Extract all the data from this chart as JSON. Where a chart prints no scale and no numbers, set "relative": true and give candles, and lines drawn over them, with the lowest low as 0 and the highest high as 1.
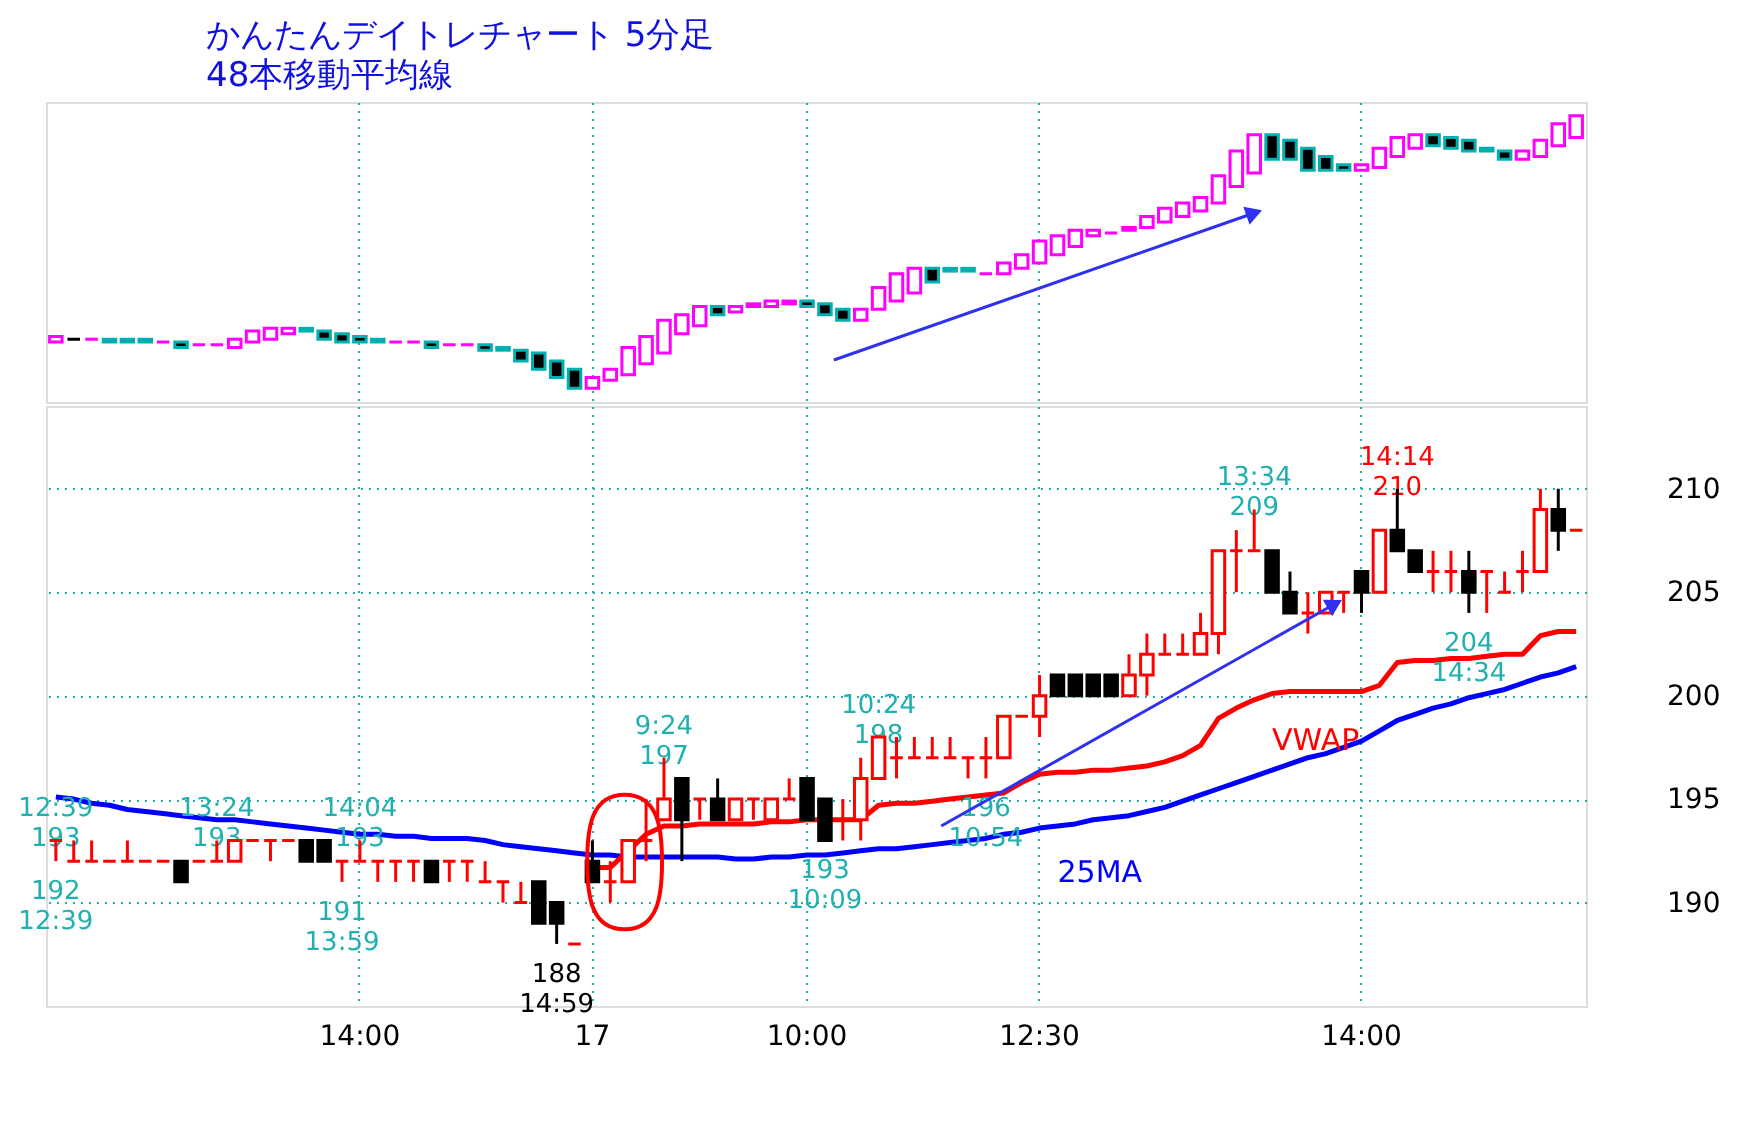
{
  "chart_data": [
    {
      "type": "candlestick",
      "title": "かんたんデイトレチャート 5分足",
      "subtitle": "48本移動平均線",
      "relative": true,
      "tick_labels": false,
      "grid": "x",
      "categories": [
        null,
        null,
        null,
        null,
        null,
        null,
        null,
        null,
        null,
        null,
        null,
        null,
        null,
        null,
        null,
        null,
        null,
        null,
        null,
        null,
        null,
        null,
        null,
        null,
        null,
        null,
        null,
        null,
        null,
        null,
        null,
        null,
        null,
        null,
        null,
        null,
        null,
        null,
        null,
        null,
        null,
        null,
        null,
        null,
        null,
        null,
        null,
        null,
        null,
        null,
        null,
        null,
        null,
        null,
        null,
        null,
        null,
        null,
        null,
        null,
        null,
        null,
        null,
        null,
        null,
        null,
        null,
        null,
        null,
        null,
        null,
        null,
        null,
        null,
        null,
        null,
        null,
        null,
        null,
        null,
        null,
        null,
        null,
        null,
        null,
        null
      ],
      "ohlc": [
        [
          0.17,
          0.19,
          0.17,
          0.19
        ],
        [
          0.18,
          0.18,
          0.18,
          0.18
        ],
        [
          0.18,
          0.18,
          0.18,
          0.18
        ],
        [
          0.18,
          0.18,
          0.17,
          0.17
        ],
        [
          0.18,
          0.18,
          0.17,
          0.17
        ],
        [
          0.18,
          0.18,
          0.17,
          0.17
        ],
        [
          0.17,
          0.17,
          0.17,
          0.17
        ],
        [
          0.17,
          0.17,
          0.15,
          0.15
        ],
        [
          0.16,
          0.16,
          0.16,
          0.16
        ],
        [
          0.16,
          0.16,
          0.16,
          0.16
        ],
        [
          0.15,
          0.18,
          0.15,
          0.18
        ],
        [
          0.17,
          0.21,
          0.17,
          0.21
        ],
        [
          0.18,
          0.22,
          0.18,
          0.22
        ],
        [
          0.2,
          0.22,
          0.2,
          0.22
        ],
        [
          0.22,
          0.22,
          0.21,
          0.21
        ],
        [
          0.21,
          0.21,
          0.18,
          0.18
        ],
        [
          0.2,
          0.2,
          0.17,
          0.17
        ],
        [
          0.19,
          0.19,
          0.17,
          0.17
        ],
        [
          0.18,
          0.18,
          0.17,
          0.17
        ],
        [
          0.17,
          0.17,
          0.17,
          0.17
        ],
        [
          0.17,
          0.17,
          0.17,
          0.17
        ],
        [
          0.17,
          0.17,
          0.15,
          0.15
        ],
        [
          0.16,
          0.16,
          0.16,
          0.16
        ],
        [
          0.16,
          0.16,
          0.16,
          0.16
        ],
        [
          0.16,
          0.16,
          0.14,
          0.14
        ],
        [
          0.15,
          0.15,
          0.14,
          0.14
        ],
        [
          0.14,
          0.14,
          0.1,
          0.1
        ],
        [
          0.13,
          0.13,
          0.07,
          0.07
        ],
        [
          0.1,
          0.1,
          0.04,
          0.04
        ],
        [
          0.07,
          0.07,
          0,
          0
        ],
        [
          0,
          0.04,
          0,
          0.04
        ],
        [
          0.03,
          0.07,
          0.03,
          0.07
        ],
        [
          0.05,
          0.15,
          0.05,
          0.15
        ],
        [
          0.09,
          0.19,
          0.09,
          0.19
        ],
        [
          0.13,
          0.25,
          0.13,
          0.25
        ],
        [
          0.2,
          0.27,
          0.2,
          0.27
        ],
        [
          0.23,
          0.3,
          0.23,
          0.3
        ],
        [
          0.3,
          0.3,
          0.27,
          0.27
        ],
        [
          0.28,
          0.3,
          0.28,
          0.3
        ],
        [
          0.3,
          0.31,
          0.3,
          0.31
        ],
        [
          0.3,
          0.32,
          0.3,
          0.32
        ],
        [
          0.31,
          0.32,
          0.31,
          0.32
        ],
        [
          0.32,
          0.32,
          0.3,
          0.3
        ],
        [
          0.31,
          0.31,
          0.27,
          0.27
        ],
        [
          0.29,
          0.29,
          0.25,
          0.25
        ],
        [
          0.25,
          0.29,
          0.25,
          0.29
        ],
        [
          0.29,
          0.37,
          0.29,
          0.37
        ],
        [
          0.32,
          0.42,
          0.32,
          0.42
        ],
        [
          0.35,
          0.44,
          0.35,
          0.44
        ],
        [
          0.44,
          0.44,
          0.39,
          0.39
        ],
        [
          0.44,
          0.44,
          0.43,
          0.43
        ],
        [
          0.44,
          0.44,
          0.43,
          0.43
        ],
        [
          0.42,
          0.42,
          0.42,
          0.42
        ],
        [
          0.42,
          0.46,
          0.42,
          0.46
        ],
        [
          0.44,
          0.49,
          0.44,
          0.49
        ],
        [
          0.46,
          0.54,
          0.46,
          0.54
        ],
        [
          0.49,
          0.56,
          0.49,
          0.56
        ],
        [
          0.52,
          0.58,
          0.52,
          0.58
        ],
        [
          0.56,
          0.58,
          0.56,
          0.58
        ],
        [
          0.57,
          0.57,
          0.57,
          0.57
        ],
        [
          0.58,
          0.59,
          0.58,
          0.59
        ],
        [
          0.59,
          0.63,
          0.59,
          0.63
        ],
        [
          0.61,
          0.66,
          0.61,
          0.66
        ],
        [
          0.63,
          0.68,
          0.63,
          0.68
        ],
        [
          0.65,
          0.7,
          0.65,
          0.7
        ],
        [
          0.68,
          0.78,
          0.68,
          0.78
        ],
        [
          0.74,
          0.87,
          0.74,
          0.87
        ],
        [
          0.79,
          0.93,
          0.79,
          0.93
        ],
        [
          0.93,
          0.93,
          0.84,
          0.84
        ],
        [
          0.91,
          0.91,
          0.84,
          0.84
        ],
        [
          0.88,
          0.88,
          0.8,
          0.8
        ],
        [
          0.85,
          0.85,
          0.8,
          0.8
        ],
        [
          0.82,
          0.82,
          0.8,
          0.8
        ],
        [
          0.8,
          0.82,
          0.8,
          0.82
        ],
        [
          0.81,
          0.88,
          0.81,
          0.88
        ],
        [
          0.85,
          0.92,
          0.85,
          0.92
        ],
        [
          0.88,
          0.93,
          0.88,
          0.93
        ],
        [
          0.93,
          0.93,
          0.89,
          0.89
        ],
        [
          0.92,
          0.92,
          0.88,
          0.88
        ],
        [
          0.91,
          0.91,
          0.87,
          0.87
        ],
        [
          0.88,
          0.88,
          0.87,
          0.87
        ],
        [
          0.87,
          0.87,
          0.84,
          0.84
        ],
        [
          0.84,
          0.87,
          0.84,
          0.87
        ],
        [
          0.85,
          0.91,
          0.85,
          0.91
        ],
        [
          0.89,
          0.97,
          0.89,
          0.97
        ],
        [
          0.92,
          1,
          0.92,
          1
        ]
      ],
      "colors": [
        "#ff00ff",
        "#000000",
        "#ff00ff",
        "#000000",
        "#000000",
        "#000000",
        "#ff00ff",
        "#000000",
        "#ff00ff",
        "#ff00ff",
        "#ff00ff",
        "#ff00ff",
        "#ff00ff",
        "#ff00ff",
        "#000000",
        "#000000",
        "#000000",
        "#000000",
        "#000000",
        "#ff00ff",
        "#ff00ff",
        "#000000",
        "#ff00ff",
        "#ff00ff",
        "#000000",
        "#000000",
        "#000000",
        "#000000",
        "#000000",
        "#000000",
        "#ff00ff",
        "#ff00ff",
        "#ff00ff",
        "#ff00ff",
        "#ff00ff",
        "#ff00ff",
        "#ff00ff",
        "#000000",
        "#ff00ff",
        "#ff00ff",
        "#ff00ff",
        "#ff00ff",
        "#000000",
        "#000000",
        "#000000",
        "#ff00ff",
        "#ff00ff",
        "#ff00ff",
        "#ff00ff",
        "#000000",
        "#000000",
        "#000000",
        "#ff00ff",
        "#ff00ff",
        "#ff00ff",
        "#ff00ff",
        "#ff00ff",
        "#ff00ff",
        "#ff00ff",
        "#ff00ff",
        "#ff00ff",
        "#ff00ff",
        "#ff00ff",
        "#ff00ff",
        "#ff00ff",
        "#ff00ff",
        "#ff00ff",
        "#ff00ff",
        "#000000",
        "#000000",
        "#000000",
        "#000000",
        "#000000",
        "#ff00ff",
        "#ff00ff",
        "#ff00ff",
        "#ff00ff",
        "#000000",
        "#000000",
        "#000000",
        "#000000",
        "#000000",
        "#ff00ff",
        "#ff00ff",
        "#ff00ff",
        "#ff00ff"
      ]
    },
    {
      "type": "candlestick",
      "grid": true,
      "ylim": [
        185,
        214
      ],
      "yticks": [
        190,
        195,
        200,
        205,
        210
      ],
      "categories": [
        null,
        null,
        null,
        null,
        null,
        null,
        null,
        null,
        null,
        null,
        null,
        null,
        null,
        null,
        null,
        null,
        null,
        "14:00",
        null,
        null,
        null,
        null,
        null,
        null,
        null,
        null,
        null,
        null,
        null,
        null,
        "17",
        null,
        null,
        null,
        null,
        null,
        null,
        null,
        null,
        null,
        null,
        null,
        "10:00",
        null,
        null,
        null,
        null,
        null,
        null,
        null,
        null,
        null,
        null,
        null,
        null,
        "12:30",
        null,
        null,
        null,
        null,
        null,
        null,
        null,
        null,
        null,
        null,
        null,
        null,
        null,
        null,
        null,
        null,
        null,
        "14:00",
        null,
        null,
        null,
        null,
        null,
        null,
        null,
        null,
        null,
        null,
        null,
        null
      ],
      "ohlc": [
        [
          193,
          193,
          192,
          193
        ],
        [
          192,
          193,
          192,
          192
        ],
        [
          192,
          193,
          192,
          192
        ],
        [
          192,
          192,
          192,
          192
        ],
        [
          192,
          193,
          192,
          192
        ],
        [
          192,
          192,
          192,
          192
        ],
        [
          192,
          192,
          192,
          192
        ],
        [
          192,
          192,
          191,
          191
        ],
        [
          192,
          192,
          192,
          192
        ],
        [
          192,
          193,
          192,
          192
        ],
        [
          192,
          193,
          192,
          193
        ],
        [
          193,
          193,
          193,
          193
        ],
        [
          193,
          193,
          192,
          193
        ],
        [
          193,
          193,
          193,
          193
        ],
        [
          193,
          193,
          192,
          192
        ],
        [
          193,
          193,
          192,
          192
        ],
        [
          192,
          192,
          191,
          192
        ],
        [
          192,
          193,
          192,
          192
        ],
        [
          192,
          192,
          191,
          192
        ],
        [
          192,
          192,
          191,
          192
        ],
        [
          192,
          192,
          191,
          192
        ],
        [
          192,
          192,
          191,
          191
        ],
        [
          192,
          192,
          191,
          192
        ],
        [
          192,
          192,
          191,
          192
        ],
        [
          191,
          192,
          191,
          191
        ],
        [
          191,
          191,
          190,
          191
        ],
        [
          190,
          191,
          190,
          190
        ],
        [
          191,
          191,
          189,
          189
        ],
        [
          190,
          190,
          188,
          189
        ],
        [
          188,
          188,
          188,
          188
        ],
        [
          192,
          193,
          191,
          191
        ],
        [
          191,
          192,
          190,
          191
        ],
        [
          191,
          193,
          191,
          193
        ],
        [
          193,
          195,
          192,
          193
        ],
        [
          194,
          197,
          194,
          195
        ],
        [
          196,
          196,
          192,
          194
        ],
        [
          195,
          195,
          194,
          195
        ],
        [
          195,
          196,
          194,
          194
        ],
        [
          194,
          195,
          194,
          195
        ],
        [
          195,
          195,
          194,
          195
        ],
        [
          194,
          195,
          194,
          195
        ],
        [
          195,
          196,
          195,
          195
        ],
        [
          196,
          196,
          194,
          194
        ],
        [
          195,
          195,
          193,
          193
        ],
        [
          194,
          195,
          193,
          194
        ],
        [
          194,
          197,
          193,
          196
        ],
        [
          196,
          198,
          196,
          198
        ],
        [
          197,
          198,
          196,
          197
        ],
        [
          197,
          198,
          197,
          197
        ],
        [
          197,
          198,
          197,
          197
        ],
        [
          197,
          198,
          197,
          197
        ],
        [
          197,
          197,
          196,
          197
        ],
        [
          197,
          198,
          196,
          197
        ],
        [
          197,
          199,
          197,
          199
        ],
        [
          199,
          199,
          199,
          199
        ],
        [
          199,
          201,
          198,
          200
        ],
        [
          201,
          201,
          200,
          200
        ],
        [
          201,
          201,
          200,
          200
        ],
        [
          201,
          201,
          200,
          200
        ],
        [
          201,
          201,
          200,
          200
        ],
        [
          200,
          202,
          200,
          201
        ],
        [
          201,
          203,
          200,
          202
        ],
        [
          202,
          203,
          202,
          202
        ],
        [
          202,
          203,
          202,
          202
        ],
        [
          202,
          204,
          202,
          203
        ],
        [
          203,
          207,
          202,
          207
        ],
        [
          207,
          208,
          205,
          207
        ],
        [
          207,
          209,
          207,
          207
        ],
        [
          207,
          207,
          205,
          205
        ],
        [
          205,
          206,
          204,
          204
        ],
        [
          204,
          205,
          203,
          204
        ],
        [
          204,
          205,
          204,
          205
        ],
        [
          205,
          205,
          204,
          205
        ],
        [
          206,
          206,
          204,
          205
        ],
        [
          205,
          208,
          205,
          208
        ],
        [
          208,
          210,
          207,
          207
        ],
        [
          207,
          207,
          206,
          206
        ],
        [
          206,
          207,
          205,
          206
        ],
        [
          206,
          207,
          205,
          206
        ],
        [
          206,
          207,
          204,
          205
        ],
        [
          206,
          206,
          204,
          206
        ],
        [
          205,
          206,
          205,
          205
        ],
        [
          206,
          207,
          205,
          206
        ],
        [
          206,
          210,
          206,
          209
        ],
        [
          209,
          210,
          207,
          208
        ],
        [
          208,
          208,
          208,
          208
        ]
      ],
      "colors": [
        "#ff0000",
        "#ff0000",
        "#ff0000",
        "#ff0000",
        "#ff0000",
        "#ff0000",
        "#ff0000",
        "#000000",
        "#ff0000",
        "#ff0000",
        "#ff0000",
        "#ff0000",
        "#ff0000",
        "#ff0000",
        "#000000",
        "#000000",
        "#ff0000",
        "#ff0000",
        "#ff0000",
        "#ff0000",
        "#ff0000",
        "#000000",
        "#ff0000",
        "#ff0000",
        "#ff0000",
        "#ff0000",
        "#ff0000",
        "#000000",
        "#000000",
        "#ff0000",
        "#000000",
        "#ff0000",
        "#ff0000",
        "#ff0000",
        "#ff0000",
        "#000000",
        "#ff0000",
        "#000000",
        "#ff0000",
        "#ff0000",
        "#ff0000",
        "#ff0000",
        "#000000",
        "#000000",
        "#ff0000",
        "#ff0000",
        "#ff0000",
        "#ff0000",
        "#ff0000",
        "#ff0000",
        "#ff0000",
        "#ff0000",
        "#ff0000",
        "#ff0000",
        "#ff0000",
        "#ff0000",
        "#000000",
        "#000000",
        "#000000",
        "#000000",
        "#ff0000",
        "#ff0000",
        "#ff0000",
        "#ff0000",
        "#ff0000",
        "#ff0000",
        "#ff0000",
        "#ff0000",
        "#000000",
        "#000000",
        "#ff0000",
        "#ff0000",
        "#ff0000",
        "#000000",
        "#ff0000",
        "#000000",
        "#000000",
        "#ff0000",
        "#ff0000",
        "#000000",
        "#ff0000",
        "#ff0000",
        "#ff0000",
        "#ff0000",
        "#000000",
        "#ff0000"
      ],
      "series": [
        {
          "name": "25MA",
          "type": "line",
          "color": "#0000ff",
          "values": [
            195.1,
            195.0,
            194.8,
            194.7,
            194.5,
            194.4,
            194.3,
            194.2,
            194.1,
            194.0,
            194.0,
            193.9,
            193.8,
            193.7,
            193.6,
            193.5,
            193.4,
            193.3,
            193.3,
            193.2,
            193.2,
            193.1,
            193.1,
            193.1,
            193.0,
            192.8,
            192.7,
            192.6,
            192.5,
            192.4,
            192.3,
            192.3,
            192.2,
            192.2,
            192.2,
            192.2,
            192.2,
            192.2,
            192.1,
            192.1,
            192.2,
            192.2,
            192.3,
            192.3,
            192.4,
            192.5,
            192.6,
            192.6,
            192.7,
            192.8,
            192.9,
            193.0,
            193.1,
            193.3,
            193.4,
            193.6,
            193.7,
            193.8,
            194.0,
            194.1,
            194.2,
            194.4,
            194.6,
            194.9,
            195.2,
            195.5,
            195.8,
            196.1,
            196.4,
            196.7,
            197.0,
            197.2,
            197.5,
            197.8,
            198.3,
            198.8,
            199.1,
            199.4,
            199.6,
            199.9,
            200.1,
            200.3,
            200.6,
            200.9,
            201.1,
            201.4
          ]
        },
        {
          "name": "VWAP",
          "type": "line",
          "color": "#ff0000",
          "values": [
            null,
            null,
            null,
            null,
            null,
            null,
            null,
            null,
            null,
            null,
            null,
            null,
            null,
            null,
            null,
            null,
            null,
            null,
            null,
            null,
            null,
            null,
            null,
            null,
            null,
            null,
            null,
            null,
            null,
            null,
            191.7,
            191.7,
            192.5,
            193.3,
            193.7,
            193.7,
            193.8,
            193.8,
            193.8,
            193.8,
            193.9,
            193.9,
            194.0,
            194.0,
            194.0,
            194.0,
            194.7,
            194.8,
            194.8,
            194.9,
            195.0,
            195.1,
            195.2,
            195.3,
            195.8,
            196.2,
            196.3,
            196.3,
            196.4,
            196.4,
            196.5,
            196.6,
            196.8,
            197.1,
            197.6,
            198.9,
            199.4,
            199.8,
            200.1,
            200.2,
            200.2,
            200.2,
            200.2,
            200.2,
            200.5,
            201.6,
            201.7,
            201.7,
            201.8,
            201.8,
            201.9,
            202.0,
            202.0,
            202.9,
            203.1,
            203.1
          ]
        }
      ],
      "annotations": [
        {
          "text": "12:39\n193",
          "y": 193
        },
        {
          "text": "192\n12:39",
          "y": 192
        },
        {
          "text": "13:24\n193",
          "y": 193
        },
        {
          "text": "191\n13:59",
          "y": 191
        },
        {
          "text": "14:04\n193",
          "y": 193
        },
        {
          "text": "188\n14:59",
          "y": 188
        },
        {
          "text": "9:24\n197",
          "y": 197
        },
        {
          "text": "10:24\n198",
          "y": 198
        },
        {
          "text": "193\n10:09",
          "y": 193
        },
        {
          "text": "196\n10:54",
          "y": 196
        },
        {
          "text": "13:34\n209",
          "y": 209
        },
        {
          "text": "14:14\n210",
          "y": 210
        },
        {
          "text": "204\n14:34",
          "y": 204
        }
      ]
    }
  ]
}
